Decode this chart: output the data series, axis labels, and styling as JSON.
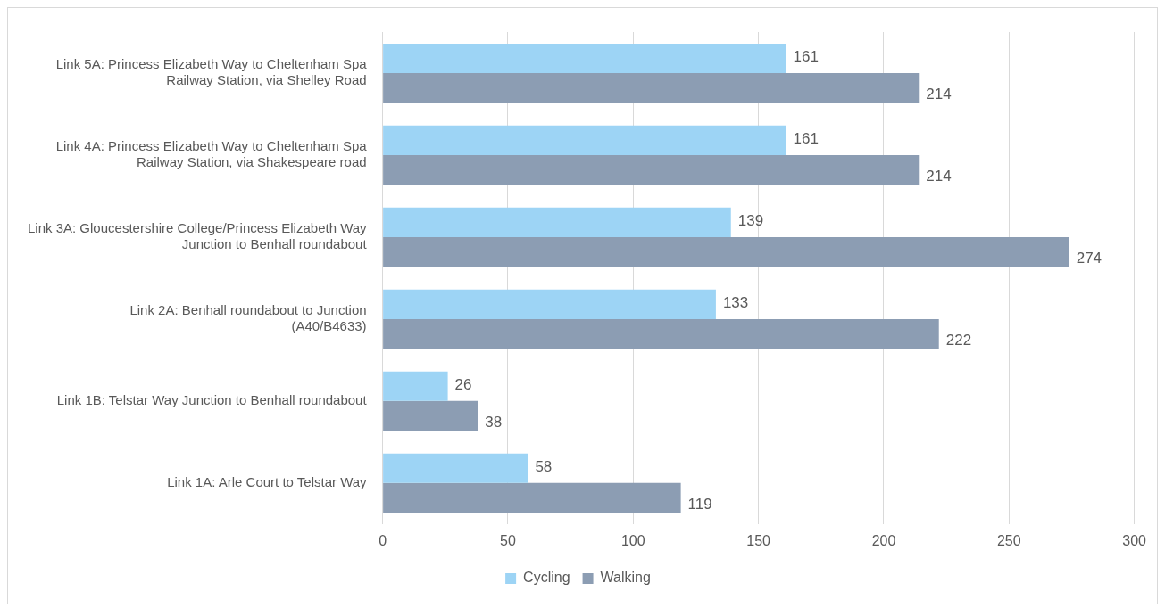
{
  "chart_data": {
    "type": "bar",
    "orientation": "horizontal",
    "categories": [
      "Link 5A: Princess Elizabeth Way to Cheltenham Spa\nRailway Station, via Shelley Road",
      "Link 4A: Princess Elizabeth Way to Cheltenham Spa\nRailway Station, via Shakespeare road",
      "Link 3A: Gloucestershire College/Princess Elizabeth Way\nJunction to Benhall roundabout",
      "Link 2A: Benhall roundabout to Junction\n(A40/B4633)",
      "Link 1B: Telstar Way Junction to Benhall roundabout",
      "Link 1A: Arle Court to Telstar Way"
    ],
    "series": [
      {
        "name": "Cycling",
        "color": "#9dd4f5",
        "values": [
          161,
          161,
          139,
          133,
          26,
          58
        ]
      },
      {
        "name": "Walking",
        "color": "#8c9db3",
        "values": [
          214,
          214,
          274,
          222,
          38,
          119
        ]
      }
    ],
    "xlim": [
      0,
      300
    ],
    "xticks": [
      0,
      50,
      100,
      150,
      200,
      250,
      300
    ],
    "grid": "x",
    "legend": "bottom",
    "data_labels": true
  }
}
